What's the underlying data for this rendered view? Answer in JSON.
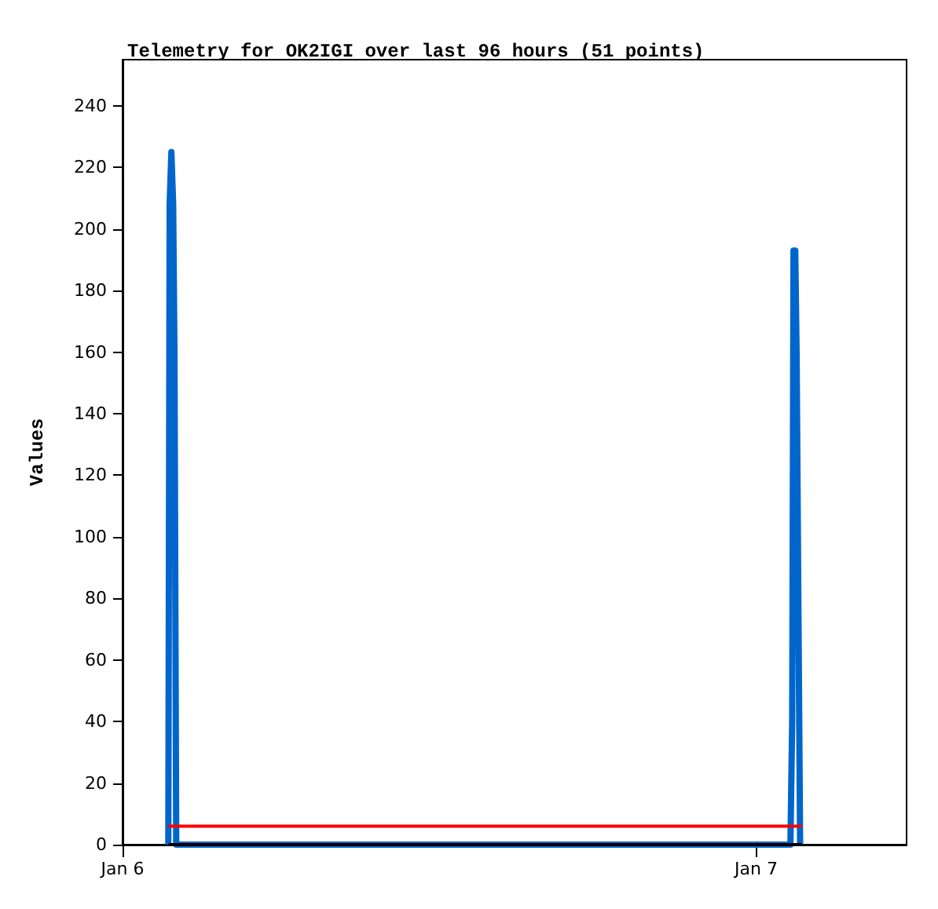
{
  "chart_data": {
    "type": "line",
    "title": "Telemetry for OK2IGI over last 96 hours (51 points)",
    "ylabel": "Values",
    "marker": "none",
    "grid": false,
    "xlim": [
      "--01-06",
      "--01-07T05:42"
    ],
    "xticks": [
      {
        "value": "--01-06",
        "label": "Jan 6"
      },
      {
        "value": "--01-07",
        "label": "Jan 7"
      }
    ],
    "ylim": [
      0,
      255
    ],
    "yticks": [
      0,
      20,
      40,
      60,
      80,
      100,
      120,
      140,
      160,
      180,
      200,
      220,
      240
    ],
    "series": [
      {
        "color": "#0066cc",
        "x": [
          "--01-06T01:44",
          "--01-06T01:47",
          "--01-06T01:51",
          "--01-06T01:55",
          "--01-06T01:58",
          "--01-06T02:02",
          "--01-07T01:18",
          "--01-07T01:22",
          "--01-07T01:25",
          "--01-07T01:29",
          "--01-07T01:32",
          "--01-07T01:36",
          "--01-07T01:40"
        ],
        "values": [
          0,
          208,
          225,
          208,
          160,
          0,
          0,
          40,
          193,
          193,
          160,
          80,
          0
        ]
      },
      {
        "color": "#000000",
        "x": [
          "--01-06T01:44",
          "--01-07T01:44"
        ],
        "values": [
          0,
          0
        ]
      },
      {
        "color": "#ff0000",
        "x": [
          "--01-06T01:44",
          "--01-07T01:44"
        ],
        "values": [
          6,
          6
        ]
      }
    ]
  }
}
